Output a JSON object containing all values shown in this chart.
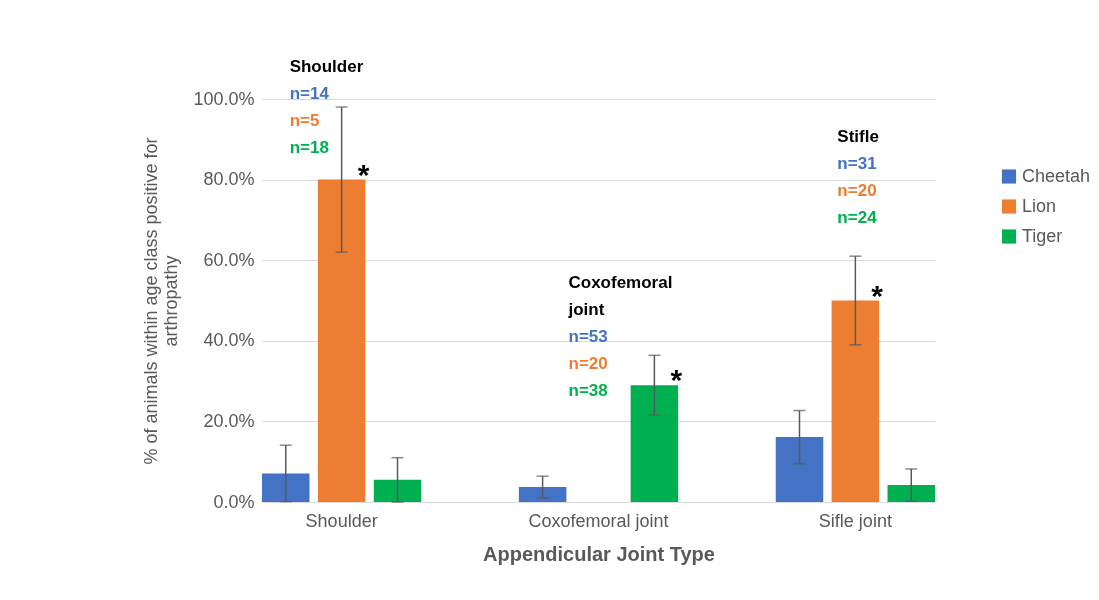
{
  "chart_data": {
    "type": "bar",
    "xlabel": "Appendicular Joint Type",
    "ylabel": "% of animals within age class positive for\narthropathy",
    "categories": [
      "Shoulder",
      "Coxofemoral joint",
      "Sifle joint"
    ],
    "series": [
      {
        "name": "Cheetah",
        "color": "#4472c4",
        "values": [
          7.1,
          3.7,
          16.1
        ],
        "errors": [
          7,
          2.7,
          6.6
        ]
      },
      {
        "name": "Lion",
        "color": "#ed7d31",
        "values": [
          80,
          0,
          50
        ],
        "errors": [
          18,
          null,
          11
        ]
      },
      {
        "name": "Tiger",
        "color": "#00b050",
        "values": [
          5.5,
          29,
          4.2
        ],
        "errors": [
          5.5,
          7.4,
          4
        ]
      }
    ],
    "ylim": [
      0,
      100
    ],
    "yticks": [
      {
        "value": 0,
        "label": "0.0%"
      },
      {
        "value": 20,
        "label": "20.0%"
      },
      {
        "value": 40,
        "label": "40.0%"
      },
      {
        "value": 60,
        "label": "60.0%"
      },
      {
        "value": 80,
        "label": "80.0%"
      },
      {
        "value": 100,
        "label": "100.0%"
      }
    ],
    "grid": "y",
    "legend": "right",
    "annotations": [
      "Shoulder",
      "n=14",
      "n=5",
      "n=18",
      "Coxofemoral joint",
      "n=53",
      "n=20",
      "n=38",
      "Stifle",
      "n=31",
      "n=20",
      "n=24",
      "*",
      "*",
      "*"
    ]
  }
}
